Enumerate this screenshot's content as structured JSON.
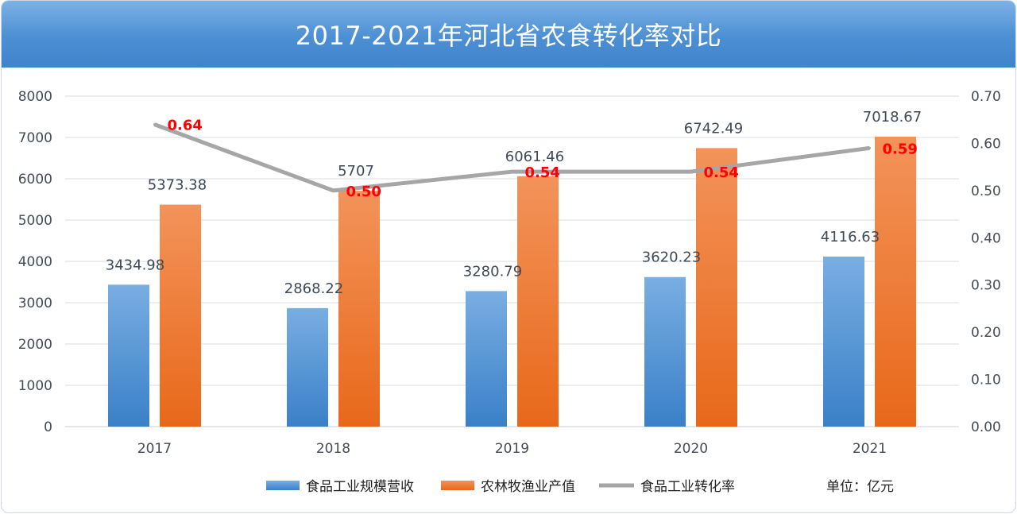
{
  "title": "2017-2021年河北省农食转化率对比",
  "unit_label": "单位：亿元",
  "colors": {
    "food": "#4a8fd4",
    "agri": "#ee7d25",
    "rate": "#a6a6a6",
    "rate_label": "#ff0000"
  },
  "chart_data": {
    "type": "bar",
    "categories": [
      "2017",
      "2018",
      "2019",
      "2020",
      "2021"
    ],
    "series": [
      {
        "name": "食品工业规模营收",
        "type": "bar",
        "axis": "left",
        "values": [
          3434.98,
          2868.22,
          3280.79,
          3620.23,
          4116.63
        ],
        "labels": [
          "3434.98",
          "2868.22",
          "3280.79",
          "3620.23",
          "4116.63"
        ]
      },
      {
        "name": "农林牧渔业产值",
        "type": "bar",
        "axis": "left",
        "values": [
          5373.38,
          5707,
          6061.46,
          6742.49,
          7018.67
        ],
        "labels": [
          "5373.38",
          "5707",
          "6061.46",
          "6742.49",
          "7018.67"
        ]
      },
      {
        "name": "食品工业转化率",
        "type": "line",
        "axis": "right",
        "values": [
          0.64,
          0.5,
          0.54,
          0.54,
          0.59
        ],
        "labels": [
          "0.64",
          "0.50",
          "0.54",
          "0.54",
          "0.59"
        ]
      }
    ],
    "y_left": {
      "min": 0,
      "max": 8000,
      "ticks": [
        "0",
        "1000",
        "2000",
        "3000",
        "4000",
        "5000",
        "6000",
        "7000",
        "8000"
      ]
    },
    "y_right": {
      "min": 0,
      "max": 0.7,
      "ticks": [
        "0.00",
        "0.10",
        "0.20",
        "0.30",
        "0.40",
        "0.50",
        "0.60",
        "0.70"
      ]
    },
    "grid": true,
    "legend_position": "bottom"
  }
}
